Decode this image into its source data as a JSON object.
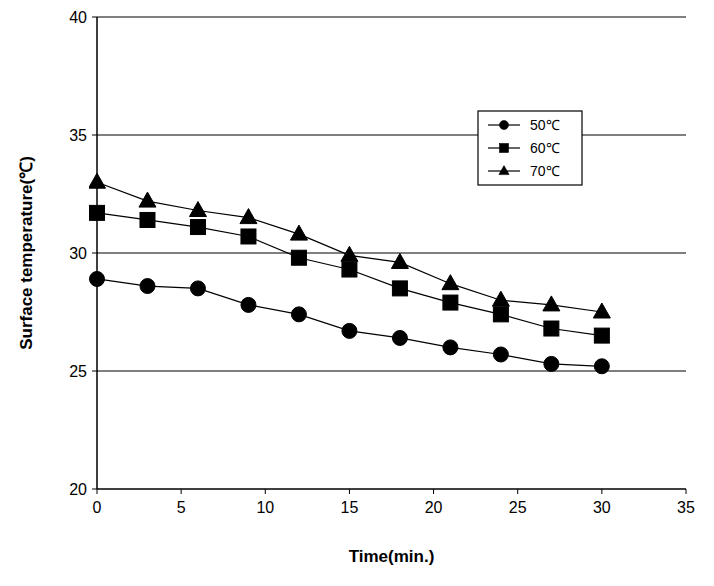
{
  "chart_data": {
    "type": "line",
    "x_label": "Time(min.)",
    "y_label": "Surface temperature(℃)",
    "x": [
      0,
      3,
      6,
      9,
      12,
      15,
      18,
      21,
      24,
      27,
      30
    ],
    "series": [
      {
        "name": "50℃",
        "color": "#000000",
        "marker": "circle",
        "values": [
          28.9,
          28.6,
          28.5,
          27.8,
          27.4,
          26.7,
          26.4,
          26.0,
          25.7,
          25.3,
          25.2
        ]
      },
      {
        "name": "60℃",
        "color": "#000000",
        "marker": "square",
        "values": [
          31.7,
          31.4,
          31.1,
          30.7,
          29.8,
          29.3,
          28.5,
          27.9,
          27.4,
          26.8,
          26.5
        ]
      },
      {
        "name": "70℃",
        "color": "#000000",
        "marker": "triangle",
        "values": [
          33.0,
          32.2,
          31.8,
          31.5,
          30.8,
          29.9,
          29.6,
          28.7,
          28.0,
          27.8,
          27.5
        ]
      }
    ],
    "xlim": [
      0,
      35
    ],
    "xticks": [
      0,
      5,
      10,
      15,
      20,
      25,
      30,
      35
    ],
    "ylim": [
      20,
      40
    ],
    "yticks": [
      20,
      25,
      30,
      35,
      40
    ],
    "grid": true,
    "legend": "upper right"
  }
}
